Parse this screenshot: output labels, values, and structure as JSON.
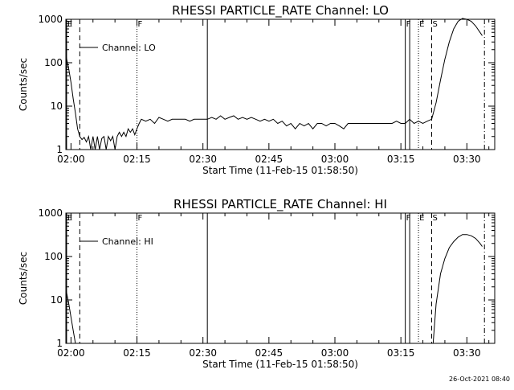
{
  "chart_data": [
    {
      "type": "line",
      "title": "RHESSI PARTICLE_RATE Channel: LO",
      "xlabel": "Start Time (11-Feb-15 01:58:50)",
      "ylabel": "Counts/sec",
      "legend": {
        "label": "Channel: LO",
        "placement": "top-left"
      },
      "y_scale": "log",
      "xlim": [
        "01:58:50",
        "03:36:20"
      ],
      "ylim": [
        1,
        1000
      ],
      "x_ticks": [
        "02:00",
        "02:15",
        "02:30",
        "02:45",
        "03:00",
        "03:15",
        "03:30"
      ],
      "y_ticks": [
        "1",
        "10",
        "100",
        "1000"
      ],
      "markers": [
        {
          "time": "01:59:00",
          "letter": "E",
          "style": "solid"
        },
        {
          "time": "02:02:00",
          "letter": "",
          "style": "dashed"
        },
        {
          "time": "02:15:00",
          "letter": "F",
          "style": "dotted"
        },
        {
          "time": "02:31:00",
          "letter": "",
          "style": "solid"
        },
        {
          "time": "03:16:00",
          "letter": "F",
          "style": "solid"
        },
        {
          "time": "03:17:00",
          "letter": "",
          "style": "solid"
        },
        {
          "time": "03:19:00",
          "letter": "E",
          "style": "dotted"
        },
        {
          "time": "03:22:00",
          "letter": "S",
          "style": "dashed"
        },
        {
          "time": "03:34:00",
          "letter": "",
          "style": "dashdot"
        }
      ],
      "series": [
        {
          "values": [
            [
              "01:58:50",
              150
            ],
            [
              "01:59:30",
              70
            ],
            [
              "02:00:00",
              35
            ],
            [
              "02:00:30",
              15
            ],
            [
              "02:01:00",
              7
            ],
            [
              "02:01:30",
              3
            ],
            [
              "02:02:00",
              2
            ],
            [
              "02:02:30",
              1.7
            ],
            [
              "02:03:00",
              1.9
            ],
            [
              "02:03:30",
              1.5
            ],
            [
              "02:04:00",
              2
            ],
            [
              "02:04:30",
              1
            ],
            [
              "02:05:00",
              2
            ],
            [
              "02:05:30",
              1
            ],
            [
              "02:06:00",
              2
            ],
            [
              "02:06:30",
              1
            ],
            [
              "02:07:00",
              1.8
            ],
            [
              "02:07:30",
              2
            ],
            [
              "02:08:00",
              1
            ],
            [
              "02:08:30",
              2
            ],
            [
              "02:09:00",
              1.6
            ],
            [
              "02:09:30",
              2
            ],
            [
              "02:10:00",
              1
            ],
            [
              "02:10:30",
              2
            ],
            [
              "02:11:00",
              2.5
            ],
            [
              "02:11:30",
              2
            ],
            [
              "02:12:00",
              2.5
            ],
            [
              "02:12:30",
              2
            ],
            [
              "02:13:00",
              3
            ],
            [
              "02:13:30",
              2.5
            ],
            [
              "02:14:00",
              3
            ],
            [
              "02:14:30",
              2.2
            ],
            [
              "02:15:00",
              3
            ],
            [
              "02:15:30",
              4
            ],
            [
              "02:16:00",
              5
            ],
            [
              "02:17:00",
              4.5
            ],
            [
              "02:18:00",
              5
            ],
            [
              "02:19:00",
              4
            ],
            [
              "02:20:00",
              5.5
            ],
            [
              "02:21:00",
              5
            ],
            [
              "02:22:00",
              4.5
            ],
            [
              "02:23:00",
              5
            ],
            [
              "02:24:00",
              5
            ],
            [
              "02:25:00",
              5
            ],
            [
              "02:26:00",
              5
            ],
            [
              "02:27:00",
              4.5
            ],
            [
              "02:28:00",
              5
            ],
            [
              "02:29:00",
              5
            ],
            [
              "02:30:00",
              5
            ],
            [
              "02:31:00",
              5
            ],
            [
              "02:32:00",
              5.5
            ],
            [
              "02:33:00",
              5
            ],
            [
              "02:34:00",
              6
            ],
            [
              "02:35:00",
              5
            ],
            [
              "02:36:00",
              5.5
            ],
            [
              "02:37:00",
              6
            ],
            [
              "02:38:00",
              5
            ],
            [
              "02:39:00",
              5.5
            ],
            [
              "02:40:00",
              5
            ],
            [
              "02:41:00",
              5.5
            ],
            [
              "02:42:00",
              5
            ],
            [
              "02:43:00",
              4.5
            ],
            [
              "02:44:00",
              5
            ],
            [
              "02:45:00",
              4.5
            ],
            [
              "02:46:00",
              5
            ],
            [
              "02:47:00",
              4
            ],
            [
              "02:48:00",
              4.5
            ],
            [
              "02:49:00",
              3.5
            ],
            [
              "02:50:00",
              4
            ],
            [
              "02:51:00",
              3
            ],
            [
              "02:52:00",
              4
            ],
            [
              "02:53:00",
              3.5
            ],
            [
              "02:54:00",
              4
            ],
            [
              "02:55:00",
              3
            ],
            [
              "02:56:00",
              4
            ],
            [
              "02:57:00",
              4
            ],
            [
              "02:58:00",
              3.5
            ],
            [
              "02:59:00",
              4
            ],
            [
              "03:00:00",
              4
            ],
            [
              "03:01:00",
              3.5
            ],
            [
              "03:02:00",
              3
            ],
            [
              "03:03:00",
              4
            ],
            [
              "03:04:00",
              4
            ],
            [
              "03:05:00",
              4
            ],
            [
              "03:06:00",
              4
            ],
            [
              "03:07:00",
              4
            ],
            [
              "03:08:00",
              4
            ],
            [
              "03:09:00",
              4
            ],
            [
              "03:10:00",
              4
            ],
            [
              "03:11:00",
              4
            ],
            [
              "03:12:00",
              4
            ],
            [
              "03:13:00",
              4
            ],
            [
              "03:14:00",
              4.5
            ],
            [
              "03:15:00",
              4
            ],
            [
              "03:16:00",
              4
            ],
            [
              "03:17:00",
              5
            ],
            [
              "03:18:00",
              4
            ],
            [
              "03:19:00",
              4.5
            ],
            [
              "03:20:00",
              4
            ],
            [
              "03:21:00",
              4.5
            ],
            [
              "03:22:00",
              5
            ],
            [
              "03:23:00",
              12
            ],
            [
              "03:24:00",
              40
            ],
            [
              "03:25:00",
              120
            ],
            [
              "03:26:00",
              300
            ],
            [
              "03:27:00",
              600
            ],
            [
              "03:28:00",
              900
            ],
            [
              "03:29:00",
              1050
            ],
            [
              "03:30:00",
              1000
            ],
            [
              "03:31:00",
              900
            ],
            [
              "03:32:00",
              700
            ],
            [
              "03:33:00",
              500
            ],
            [
              "03:33:30",
              420
            ]
          ]
        }
      ]
    },
    {
      "type": "line",
      "title": "RHESSI PARTICLE_RATE Channel: HI",
      "xlabel": "Start Time (11-Feb-15 01:58:50)",
      "ylabel": "Counts/sec",
      "legend": {
        "label": "Channel: HI",
        "placement": "top-left"
      },
      "y_scale": "log",
      "xlim": [
        "01:58:50",
        "03:36:20"
      ],
      "ylim": [
        1,
        1000
      ],
      "x_ticks": [
        "02:00",
        "02:15",
        "02:30",
        "02:45",
        "03:00",
        "03:15",
        "03:30"
      ],
      "y_ticks": [
        "1",
        "10",
        "100",
        "1000"
      ],
      "markers": [
        {
          "time": "01:59:00",
          "letter": "E",
          "style": "solid"
        },
        {
          "time": "02:02:00",
          "letter": "",
          "style": "dashed"
        },
        {
          "time": "02:15:00",
          "letter": "F",
          "style": "dotted"
        },
        {
          "time": "02:31:00",
          "letter": "",
          "style": "solid"
        },
        {
          "time": "03:16:00",
          "letter": "F",
          "style": "solid"
        },
        {
          "time": "03:17:00",
          "letter": "",
          "style": "solid"
        },
        {
          "time": "03:19:00",
          "letter": "E",
          "style": "dotted"
        },
        {
          "time": "03:22:00",
          "letter": "S",
          "style": "dashed"
        },
        {
          "time": "03:34:00",
          "letter": "",
          "style": "dashdot"
        }
      ],
      "series": [
        {
          "values": [
            [
              "01:58:50",
              18
            ],
            [
              "01:59:30",
              8
            ],
            [
              "02:00:00",
              4
            ],
            [
              "02:00:30",
              2
            ],
            [
              "02:01:00",
              1
            ],
            [
              "03:22:20",
              1
            ],
            [
              "03:23:00",
              8
            ],
            [
              "03:24:00",
              40
            ],
            [
              "03:25:00",
              90
            ],
            [
              "03:26:00",
              160
            ],
            [
              "03:27:00",
              220
            ],
            [
              "03:28:00",
              280
            ],
            [
              "03:29:00",
              320
            ],
            [
              "03:30:00",
              320
            ],
            [
              "03:31:00",
              300
            ],
            [
              "03:32:00",
              260
            ],
            [
              "03:33:00",
              200
            ],
            [
              "03:33:30",
              170
            ]
          ]
        }
      ]
    }
  ],
  "footer": {
    "timestamp": "26-Oct-2021 08:40"
  }
}
